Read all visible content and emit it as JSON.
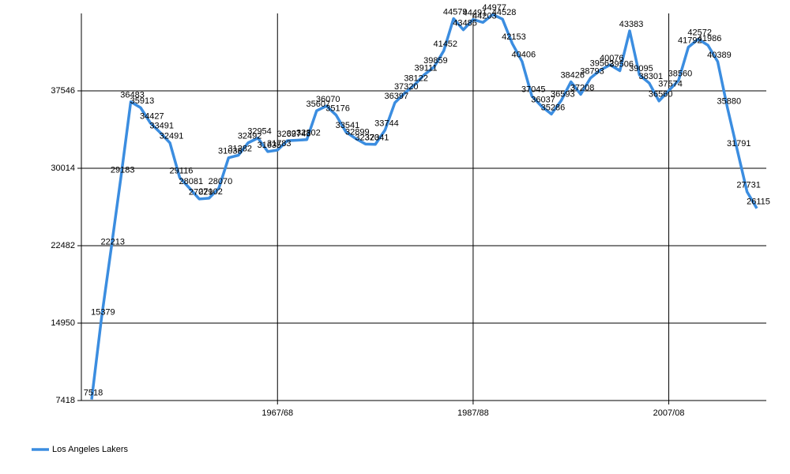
{
  "chart_data": {
    "type": "line",
    "categories": [
      null,
      null,
      null,
      null,
      null,
      null,
      null,
      null,
      null,
      null,
      null,
      null,
      null,
      null,
      null,
      null,
      null,
      null,
      null,
      "1967/68",
      null,
      null,
      null,
      null,
      null,
      null,
      null,
      null,
      null,
      null,
      null,
      null,
      null,
      null,
      null,
      null,
      null,
      null,
      null,
      "1987/88",
      null,
      null,
      null,
      null,
      null,
      null,
      null,
      null,
      null,
      null,
      null,
      null,
      null,
      null,
      null,
      null,
      null,
      null,
      null,
      "2007/08",
      null,
      null,
      null,
      null,
      null,
      null,
      null,
      null,
      null
    ],
    "series": [
      {
        "name": "Los Angeles Lakers",
        "color": "#3b8de0",
        "values": [
          7518,
          15379,
          22213,
          29183,
          36483,
          35913,
          34427,
          33491,
          32491,
          29116,
          28081,
          27029,
          27102,
          28070,
          31038,
          31282,
          32492,
          32954,
          31635,
          31783,
          32697,
          32743,
          32802,
          35607,
          36070,
          35176,
          33541,
          32899,
          32370,
          32341,
          33744,
          36397,
          37320,
          38122,
          39111,
          39859,
          41452,
          44579,
          43485,
          44491,
          44203,
          44977,
          44528,
          42153,
          40406,
          37045,
          36037,
          35286,
          36593,
          38426,
          37208,
          38793,
          39562,
          40076,
          39506,
          43383,
          39095,
          38301,
          36560,
          37574,
          38560,
          41792,
          42572,
          41986,
          40389,
          35880,
          31791,
          27731,
          26115
        ]
      }
    ],
    "ylim": [
      7418,
      45078
    ],
    "yticks": [
      7418,
      14950,
      22482,
      30014,
      37546
    ],
    "grid": true,
    "legend": "bottom-left"
  }
}
